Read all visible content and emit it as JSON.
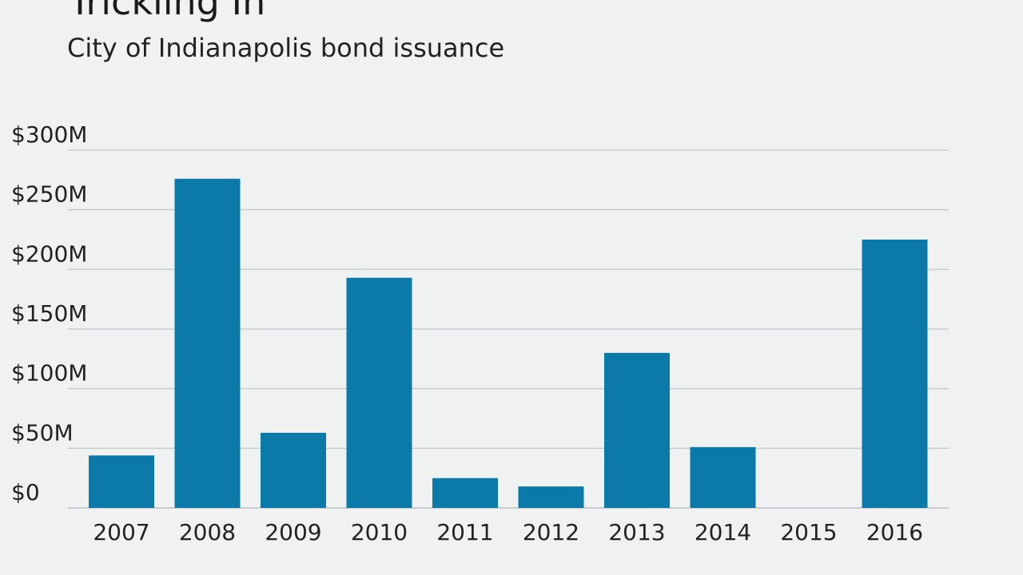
{
  "header": {
    "title": "Trickling In",
    "subtitle": "City of Indianapolis bond issuance"
  },
  "colors": {
    "bar": "#0b7aa8",
    "grid": "#c8cccc",
    "background": "#f0f2f2"
  },
  "chart_data": {
    "type": "bar",
    "title": "Trickling In",
    "subtitle": "City of Indianapolis bond issuance",
    "xlabel": "",
    "ylabel": "",
    "categories": [
      "2007",
      "2008",
      "2009",
      "2010",
      "2011",
      "2012",
      "2013",
      "2014",
      "2015",
      "2016"
    ],
    "values": [
      44,
      276,
      63,
      193,
      25,
      18,
      130,
      51,
      0,
      225
    ],
    "unit": "$M",
    "ylim": [
      0,
      300
    ],
    "yticks": [
      0,
      50,
      100,
      150,
      200,
      250,
      300
    ],
    "ytick_labels": [
      "$0",
      "$50M",
      "$100M",
      "$150M",
      "$200M",
      "$250M",
      "$300M"
    ],
    "grid": true,
    "legend": "none"
  }
}
